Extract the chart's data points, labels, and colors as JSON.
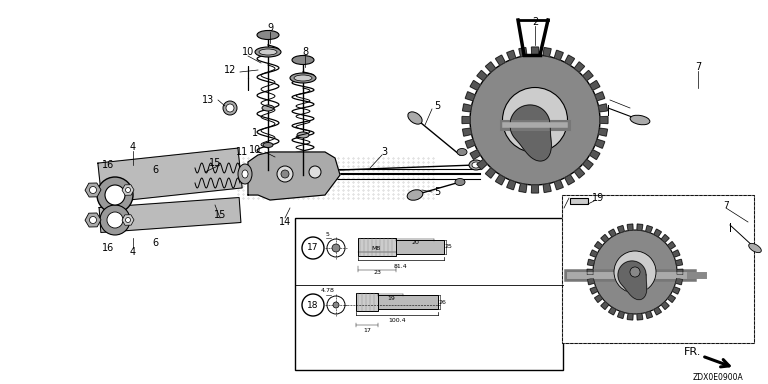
{
  "background_color": "#ffffff",
  "diagram_code_label": "ZDX0E0900A",
  "fr_label": "FR."
}
